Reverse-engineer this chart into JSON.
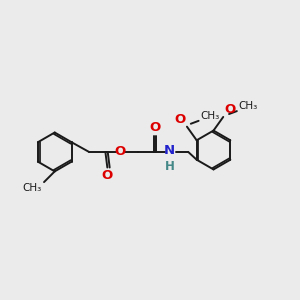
{
  "bg_color": "#ebebeb",
  "line_color": "#1a1a1a",
  "bond_width": 1.4,
  "font_size": 8.0,
  "O_color": "#dd0000",
  "N_color": "#2222cc",
  "H_color": "#448888",
  "figsize": [
    3.0,
    3.0
  ],
  "dpi": 100,
  "xlim": [
    0,
    300
  ],
  "ylim": [
    0,
    300
  ]
}
